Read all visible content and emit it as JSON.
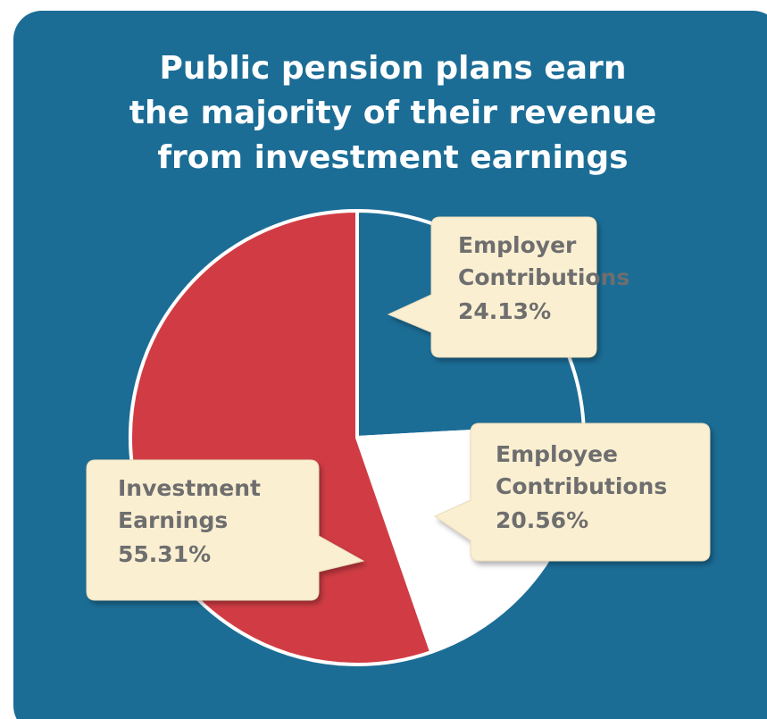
{
  "chart_data": {
    "type": "pie",
    "title": "Public pension plans earn the majority of their revenue from investment earnings",
    "categories": [
      "Employer Contributions",
      "Employee Contributions",
      "Investment Earnings"
    ],
    "values": [
      24.13,
      20.56,
      55.31
    ],
    "value_labels": [
      "24.13%",
      "20.56%",
      "55.31%"
    ],
    "colors": [
      "#1b6d96",
      "#ffffff",
      "#d13c44"
    ]
  }
}
